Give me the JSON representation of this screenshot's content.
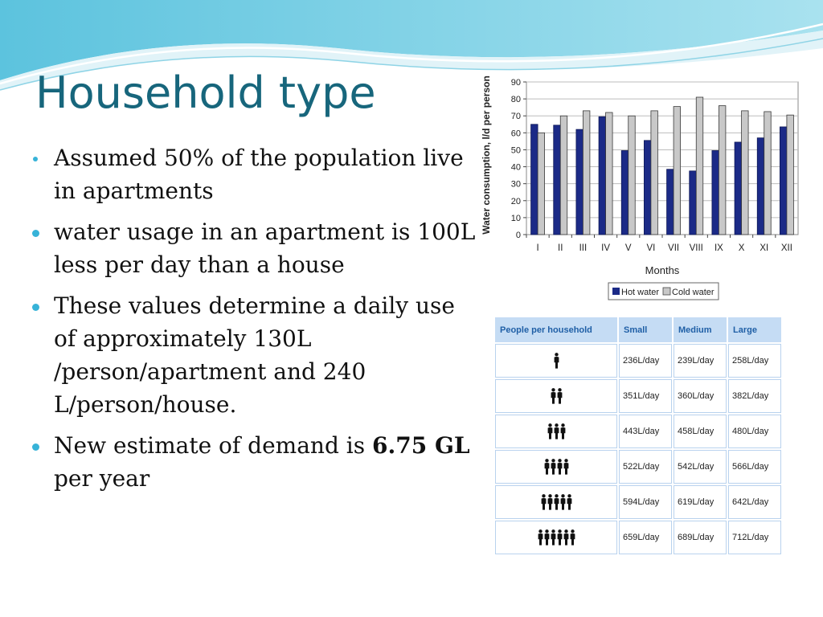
{
  "slide": {
    "title": "Household type",
    "bullets": [
      "Assumed 50% of the population live in apartments",
      "water usage in an apartment is 100L less per day than a house",
      "These values determine a daily use of approximately 130L /person/apartment and 240 L/person/house."
    ],
    "last_bullet": {
      "prefix": "New estimate of demand is ",
      "bold": "6.75 GL",
      "suffix": " per year"
    }
  },
  "chart_data": {
    "type": "bar",
    "xlabel": "Months",
    "ylabel": "Water consumption, l/d per person",
    "categories": [
      "I",
      "II",
      "III",
      "IV",
      "V",
      "VI",
      "VII",
      "VIII",
      "IX",
      "X",
      "XI",
      "XII"
    ],
    "series": [
      {
        "name": "Hot water",
        "color": "#1b2a87",
        "values": [
          65,
          64.5,
          62,
          69.5,
          49.5,
          55.5,
          38.5,
          37.5,
          49.5,
          54.5,
          57,
          63.5
        ]
      },
      {
        "name": "Cold water",
        "color": "#c8c8c8",
        "values": [
          60,
          70,
          73,
          72,
          70,
          73,
          75.5,
          81,
          76,
          73,
          72.5,
          70.5
        ]
      }
    ],
    "ylim": [
      0,
      90
    ],
    "yticks": [
      0,
      10,
      20,
      30,
      40,
      50,
      60,
      70,
      80,
      90
    ],
    "grid": true,
    "legend_position": "bottom"
  },
  "household_table": {
    "headers": [
      "People per household",
      "Small",
      "Medium",
      "Large"
    ],
    "rows": [
      {
        "people": 1,
        "small": "236L/day",
        "medium": "239L/day",
        "large": "258L/day"
      },
      {
        "people": 2,
        "small": "351L/day",
        "medium": "360L/day",
        "large": "382L/day"
      },
      {
        "people": 3,
        "small": "443L/day",
        "medium": "458L/day",
        "large": "480L/day"
      },
      {
        "people": 4,
        "small": "522L/day",
        "medium": "542L/day",
        "large": "566L/day"
      },
      {
        "people": 5,
        "small": "594L/day",
        "medium": "619L/day",
        "large": "642L/day"
      },
      {
        "people": 6,
        "small": "659L/day",
        "medium": "689L/day",
        "large": "712L/day"
      }
    ]
  }
}
